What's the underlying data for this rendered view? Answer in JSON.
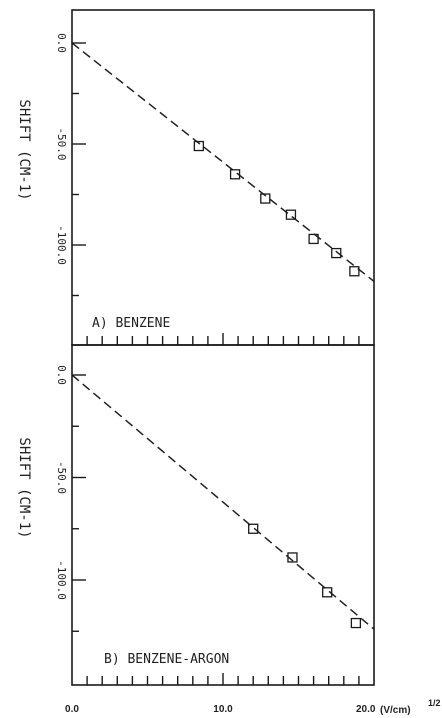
{
  "chart_data": [
    {
      "type": "scatter",
      "label": "A) BENZENE",
      "ylabel": "SHIFT (CM-1)",
      "xlim": [
        0,
        20
      ],
      "ylim": [
        -150,
        0
      ],
      "ytick_labels": [
        "0.0",
        "-50.0",
        "-100.0"
      ],
      "yticks": [
        0,
        -50,
        -100
      ],
      "series": [
        {
          "x": [
            8.4,
            10.8,
            12.8,
            14.5,
            16.0,
            17.5,
            18.7
          ],
          "y": [
            -51,
            -65,
            -77,
            -85,
            -97,
            -104,
            -113
          ]
        }
      ],
      "fit_line": {
        "x": [
          0,
          20
        ],
        "y": [
          0,
          -118
        ]
      }
    },
    {
      "type": "scatter",
      "label": "B) BENZENE-ARGON",
      "ylabel": "SHIFT (CM-1)",
      "xlim": [
        0,
        20
      ],
      "ylim": [
        -150,
        0
      ],
      "ytick_labels": [
        "0.0",
        "-50.0",
        "-100.0"
      ],
      "yticks": [
        0,
        -50,
        -100
      ],
      "series": [
        {
          "x": [
            12.0,
            14.6,
            16.9,
            18.8
          ],
          "y": [
            -75,
            -89,
            -106,
            -121
          ]
        }
      ],
      "fit_line": {
        "x": [
          0,
          20
        ],
        "y": [
          0,
          -124
        ]
      }
    }
  ],
  "x_axis": {
    "tick_labels": [
      "0.0",
      "10.0",
      "20.0"
    ],
    "ticks": [
      0,
      10,
      20
    ],
    "unit": "(V/cm)"
  }
}
